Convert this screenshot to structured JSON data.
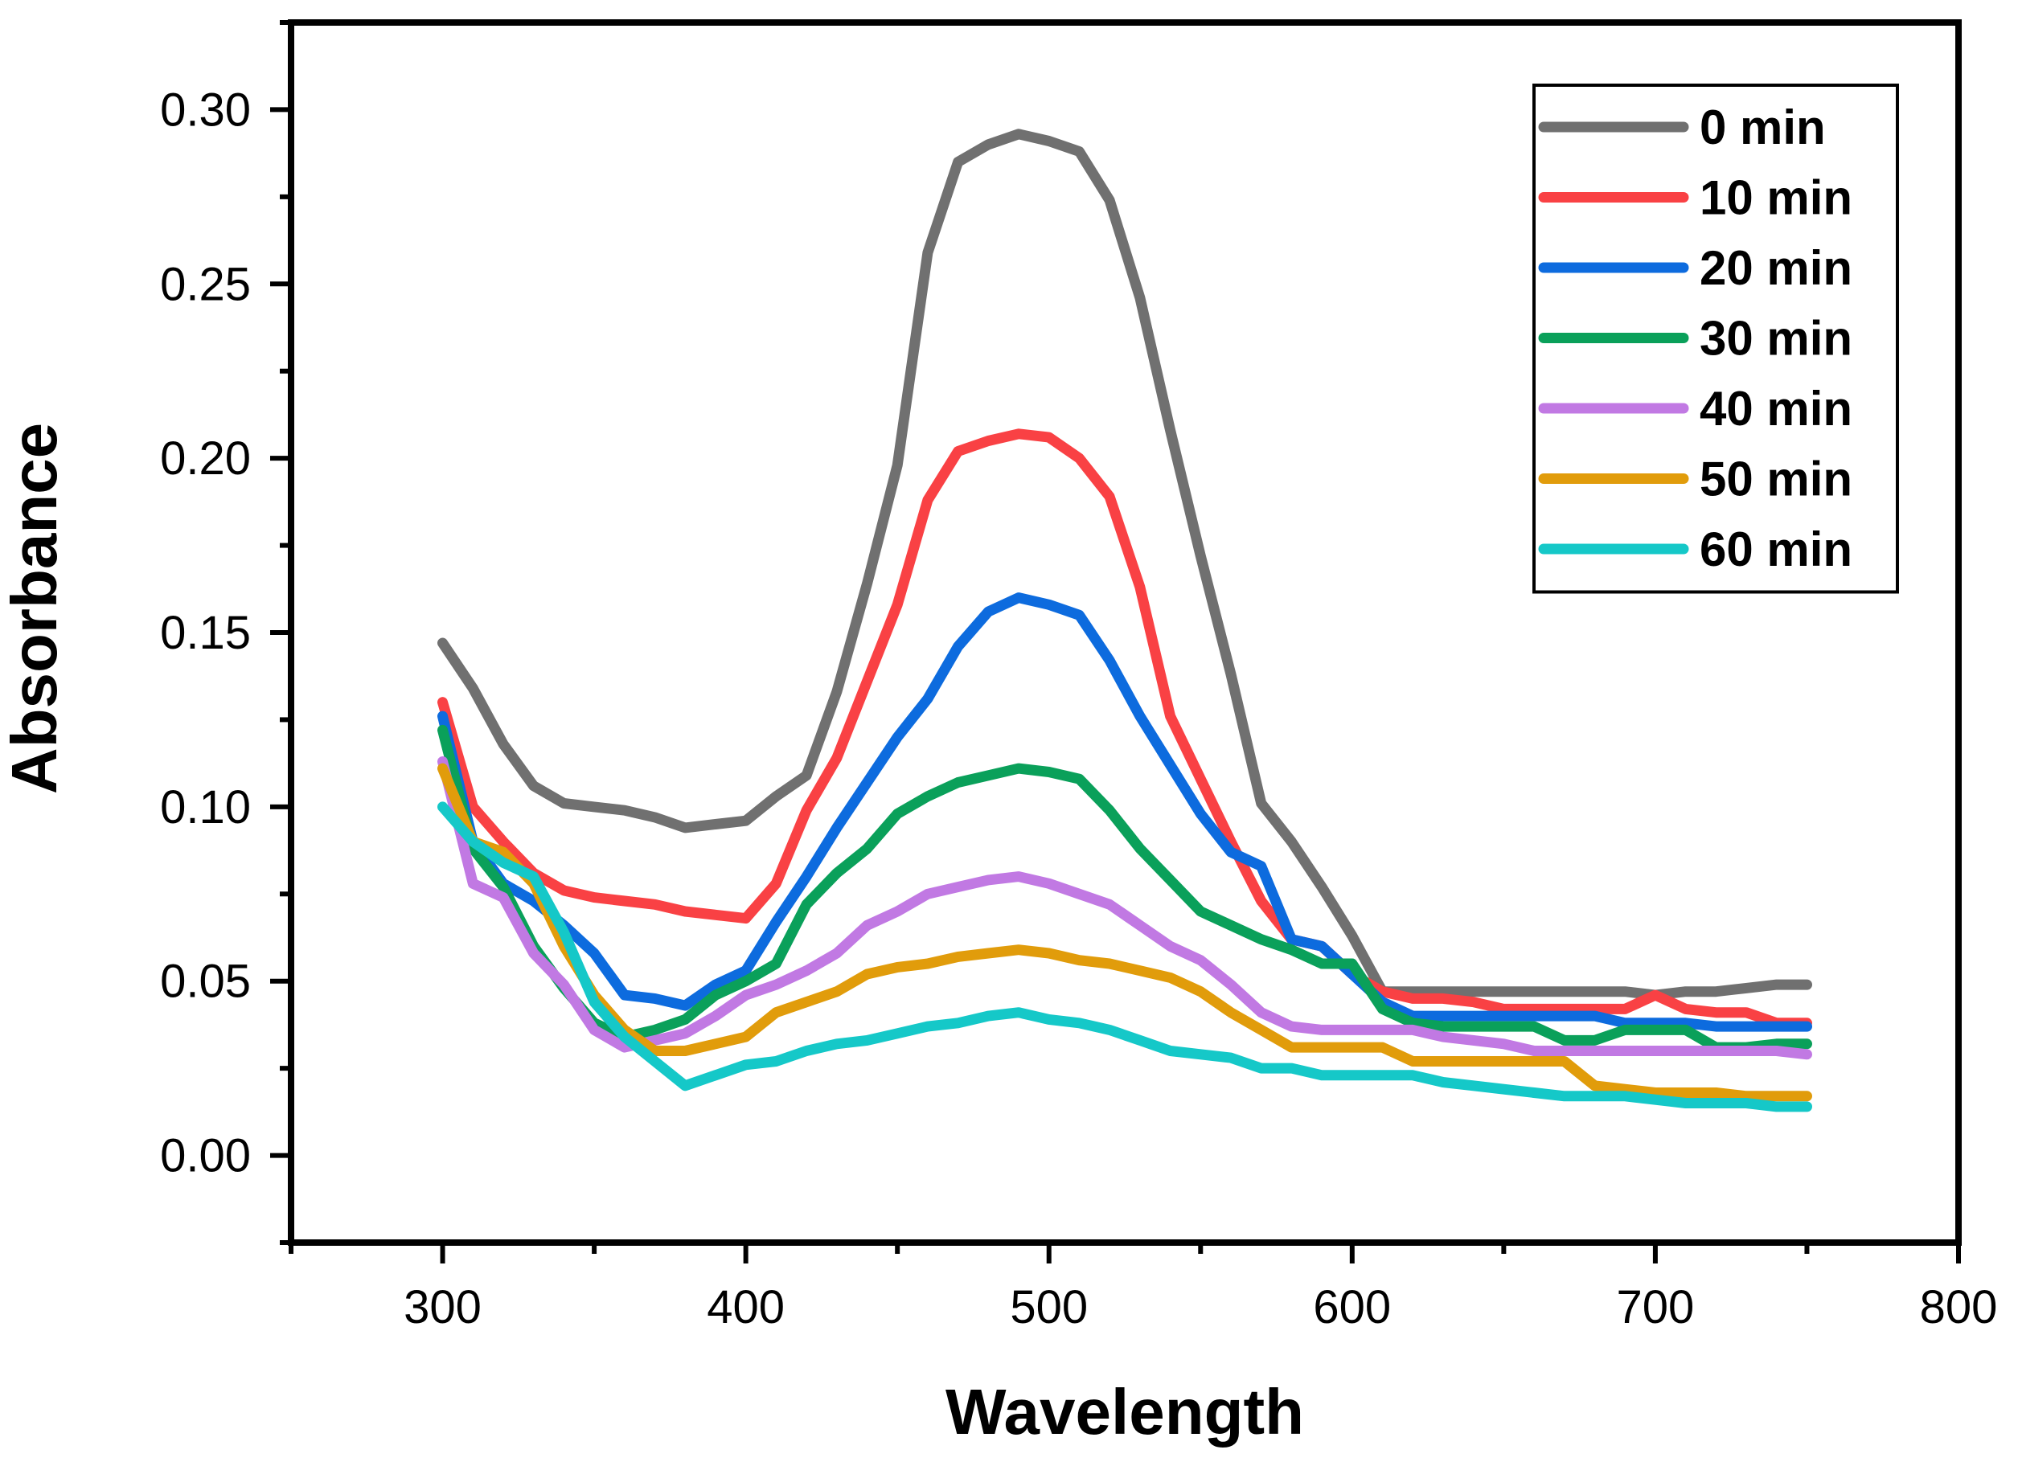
{
  "chart_data": {
    "type": "line",
    "title": "",
    "xlabel": "Wavelength",
    "ylabel": "Absorbance",
    "xlim": [
      250,
      800
    ],
    "ylim": [
      -0.025,
      0.325
    ],
    "xticks": [
      300,
      400,
      500,
      600,
      700,
      800
    ],
    "yticks": [
      0.0,
      0.05,
      0.1,
      0.15,
      0.2,
      0.25,
      0.3
    ],
    "xtick_labels": [
      "300",
      "400",
      "500",
      "600",
      "700",
      "800"
    ],
    "ytick_labels": [
      "0.00",
      "0.05",
      "0.10",
      "0.15",
      "0.20",
      "0.25",
      "0.30"
    ],
    "grid": false,
    "legend_position": "top-right",
    "x": [
      300,
      310,
      320,
      330,
      340,
      350,
      360,
      370,
      380,
      390,
      400,
      410,
      420,
      430,
      440,
      450,
      460,
      470,
      480,
      490,
      500,
      510,
      520,
      530,
      540,
      550,
      560,
      570,
      580,
      590,
      600,
      610,
      620,
      630,
      640,
      650,
      660,
      670,
      680,
      690,
      700,
      710,
      720,
      730,
      740,
      750
    ],
    "series": [
      {
        "name": "0 min",
        "color": "#707070",
        "values": [
          0.147,
          0.134,
          0.118,
          0.106,
          0.101,
          0.1,
          0.099,
          0.097,
          0.094,
          0.095,
          0.096,
          0.103,
          0.109,
          0.133,
          0.164,
          0.198,
          0.259,
          0.285,
          0.29,
          0.293,
          0.291,
          0.288,
          0.274,
          0.246,
          0.208,
          0.172,
          0.138,
          0.101,
          0.09,
          0.077,
          0.063,
          0.047,
          0.047,
          0.047,
          0.047,
          0.047,
          0.047,
          0.047,
          0.047,
          0.047,
          0.046,
          0.047,
          0.047,
          0.048,
          0.049,
          0.049
        ]
      },
      {
        "name": "10 min",
        "color": "#f94144",
        "values": [
          0.13,
          0.1,
          0.09,
          0.081,
          0.076,
          0.074,
          0.073,
          0.072,
          0.07,
          0.069,
          0.068,
          0.078,
          0.099,
          0.114,
          0.136,
          0.158,
          0.188,
          0.202,
          0.205,
          0.207,
          0.206,
          0.2,
          0.189,
          0.163,
          0.126,
          0.108,
          0.09,
          0.073,
          0.062,
          0.06,
          0.052,
          0.047,
          0.045,
          0.045,
          0.044,
          0.042,
          0.042,
          0.042,
          0.042,
          0.042,
          0.046,
          0.042,
          0.041,
          0.041,
          0.038,
          0.038
        ]
      },
      {
        "name": "20 min",
        "color": "#0d6bde",
        "values": [
          0.126,
          0.09,
          0.078,
          0.073,
          0.066,
          0.058,
          0.046,
          0.045,
          0.043,
          0.049,
          0.053,
          0.067,
          0.08,
          0.094,
          0.107,
          0.12,
          0.131,
          0.146,
          0.156,
          0.16,
          0.158,
          0.155,
          0.142,
          0.126,
          0.112,
          0.098,
          0.087,
          0.083,
          0.062,
          0.06,
          0.052,
          0.044,
          0.04,
          0.04,
          0.04,
          0.04,
          0.04,
          0.04,
          0.04,
          0.038,
          0.038,
          0.038,
          0.037,
          0.037,
          0.037,
          0.037
        ]
      },
      {
        "name": "30 min",
        "color": "#0aa05a",
        "values": [
          0.122,
          0.088,
          0.077,
          0.06,
          0.048,
          0.038,
          0.034,
          0.036,
          0.039,
          0.046,
          0.05,
          0.055,
          0.072,
          0.081,
          0.088,
          0.098,
          0.103,
          0.107,
          0.109,
          0.111,
          0.11,
          0.108,
          0.099,
          0.088,
          0.079,
          0.07,
          0.066,
          0.062,
          0.059,
          0.055,
          0.055,
          0.042,
          0.038,
          0.037,
          0.037,
          0.037,
          0.037,
          0.033,
          0.033,
          0.036,
          0.036,
          0.036,
          0.031,
          0.031,
          0.032,
          0.032
        ]
      },
      {
        "name": "40 min",
        "color": "#c179e3",
        "values": [
          0.113,
          0.078,
          0.074,
          0.058,
          0.049,
          0.036,
          0.031,
          0.033,
          0.035,
          0.04,
          0.046,
          0.049,
          0.053,
          0.058,
          0.066,
          0.07,
          0.075,
          0.077,
          0.079,
          0.08,
          0.078,
          0.075,
          0.072,
          0.066,
          0.06,
          0.056,
          0.049,
          0.041,
          0.037,
          0.036,
          0.036,
          0.036,
          0.036,
          0.034,
          0.033,
          0.032,
          0.03,
          0.03,
          0.03,
          0.03,
          0.03,
          0.03,
          0.03,
          0.03,
          0.03,
          0.029
        ]
      },
      {
        "name": "50 min",
        "color": "#e19c0b",
        "values": [
          0.111,
          0.09,
          0.087,
          0.078,
          0.06,
          0.046,
          0.036,
          0.03,
          0.03,
          0.032,
          0.034,
          0.041,
          0.044,
          0.047,
          0.052,
          0.054,
          0.055,
          0.057,
          0.058,
          0.059,
          0.058,
          0.056,
          0.055,
          0.053,
          0.051,
          0.047,
          0.041,
          0.036,
          0.031,
          0.031,
          0.031,
          0.031,
          0.027,
          0.027,
          0.027,
          0.027,
          0.027,
          0.027,
          0.02,
          0.019,
          0.018,
          0.018,
          0.018,
          0.017,
          0.017,
          0.017
        ]
      },
      {
        "name": "60 min",
        "color": "#15c8c8",
        "values": [
          0.1,
          0.09,
          0.084,
          0.08,
          0.064,
          0.044,
          0.034,
          0.027,
          0.02,
          0.023,
          0.026,
          0.027,
          0.03,
          0.032,
          0.033,
          0.035,
          0.037,
          0.038,
          0.04,
          0.041,
          0.039,
          0.038,
          0.036,
          0.033,
          0.03,
          0.029,
          0.028,
          0.025,
          0.025,
          0.023,
          0.023,
          0.023,
          0.023,
          0.021,
          0.02,
          0.019,
          0.018,
          0.017,
          0.017,
          0.017,
          0.016,
          0.015,
          0.015,
          0.015,
          0.014,
          0.014
        ]
      }
    ]
  }
}
